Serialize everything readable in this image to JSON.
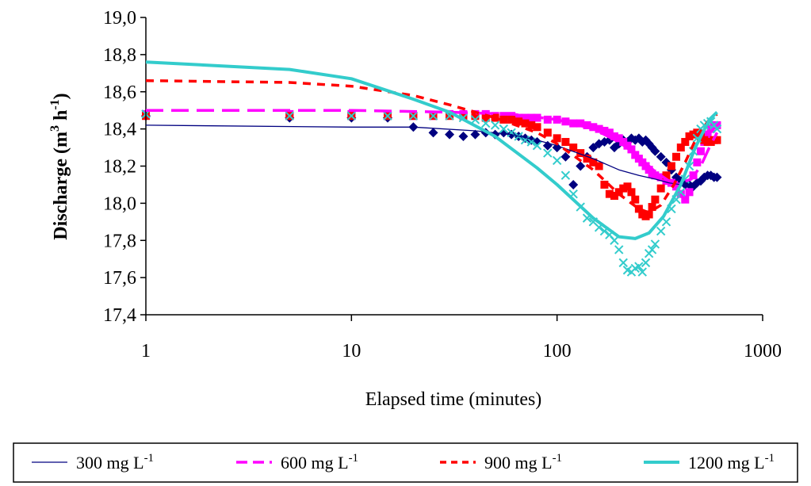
{
  "chart_data": {
    "type": "scatter",
    "xscale": "log",
    "xlim": [
      1,
      1000
    ],
    "ylim": [
      17.4,
      19.0
    ],
    "xticks": [
      1,
      10,
      100,
      1000
    ],
    "xtick_labels": [
      "1",
      "10",
      "100",
      "1000"
    ],
    "yticks": [
      17.4,
      17.6,
      17.8,
      18.0,
      18.2,
      18.4,
      18.6,
      18.8,
      19.0
    ],
    "ytick_labels": [
      "17,4",
      "17,6",
      "17,8",
      "18,0",
      "18,2",
      "18,4",
      "18,6",
      "18,8",
      "19,0"
    ],
    "xlabel": "Elapsed time (minutes)",
    "ylabel": {
      "main": "Discharge (m",
      "sup1": "3",
      "mid": " h",
      "sup2": "-1",
      "end": ")"
    },
    "grid": false,
    "legend_position": "bottom",
    "series": [
      {
        "name": "300 mg L",
        "name_sup": "-1",
        "color": "#000080",
        "line_style": "solid",
        "marker": "diamond",
        "points": [
          [
            1,
            18.47
          ],
          [
            5,
            18.46
          ],
          [
            10,
            18.46
          ],
          [
            15,
            18.46
          ],
          [
            20,
            18.41
          ],
          [
            25,
            18.38
          ],
          [
            30,
            18.37
          ],
          [
            35,
            18.36
          ],
          [
            40,
            18.37
          ],
          [
            45,
            18.38
          ],
          [
            50,
            18.37
          ],
          [
            55,
            18.38
          ],
          [
            60,
            18.37
          ],
          [
            65,
            18.36
          ],
          [
            70,
            18.35
          ],
          [
            75,
            18.34
          ],
          [
            80,
            18.33
          ],
          [
            90,
            18.31
          ],
          [
            100,
            18.3
          ],
          [
            110,
            18.25
          ],
          [
            120,
            18.1
          ],
          [
            130,
            18.2
          ],
          [
            140,
            18.25
          ],
          [
            150,
            18.3
          ],
          [
            160,
            18.32
          ],
          [
            170,
            18.33
          ],
          [
            180,
            18.34
          ],
          [
            190,
            18.3
          ],
          [
            200,
            18.32
          ],
          [
            210,
            18.34
          ],
          [
            220,
            18.33
          ],
          [
            230,
            18.35
          ],
          [
            240,
            18.34
          ],
          [
            250,
            18.35
          ],
          [
            260,
            18.33
          ],
          [
            270,
            18.34
          ],
          [
            280,
            18.32
          ],
          [
            290,
            18.3
          ],
          [
            300,
            18.28
          ],
          [
            320,
            18.25
          ],
          [
            340,
            18.22
          ],
          [
            360,
            18.18
          ],
          [
            380,
            18.14
          ],
          [
            400,
            18.12
          ],
          [
            420,
            18.1
          ],
          [
            440,
            18.1
          ],
          [
            460,
            18.09
          ],
          [
            480,
            18.11
          ],
          [
            500,
            18.12
          ],
          [
            520,
            18.14
          ],
          [
            540,
            18.15
          ],
          [
            560,
            18.15
          ],
          [
            580,
            18.14
          ],
          [
            600,
            18.14
          ]
        ],
        "fit": [
          [
            1,
            18.42
          ],
          [
            10,
            18.41
          ],
          [
            20,
            18.41
          ],
          [
            40,
            18.39
          ],
          [
            60,
            18.37
          ],
          [
            80,
            18.34
          ],
          [
            100,
            18.31
          ],
          [
            150,
            18.24
          ],
          [
            200,
            18.18
          ],
          [
            250,
            18.15
          ],
          [
            300,
            18.13
          ],
          [
            350,
            18.11
          ],
          [
            400,
            18.1
          ],
          [
            450,
            18.1
          ],
          [
            500,
            18.12
          ],
          [
            550,
            18.14
          ],
          [
            600,
            18.15
          ]
        ]
      },
      {
        "name": "600 mg L",
        "name_sup": "-1",
        "color": "#ff00ff",
        "line_style": "dashed",
        "marker": "square",
        "points": [
          [
            1,
            18.48
          ],
          [
            5,
            18.48
          ],
          [
            10,
            18.48
          ],
          [
            15,
            18.48
          ],
          [
            20,
            18.47
          ],
          [
            25,
            18.47
          ],
          [
            30,
            18.48
          ],
          [
            35,
            18.48
          ],
          [
            40,
            18.48
          ],
          [
            45,
            18.48
          ],
          [
            50,
            18.47
          ],
          [
            55,
            18.47
          ],
          [
            60,
            18.47
          ],
          [
            65,
            18.46
          ],
          [
            70,
            18.46
          ],
          [
            75,
            18.46
          ],
          [
            80,
            18.46
          ],
          [
            90,
            18.45
          ],
          [
            100,
            18.45
          ],
          [
            110,
            18.44
          ],
          [
            120,
            18.43
          ],
          [
            130,
            18.43
          ],
          [
            140,
            18.42
          ],
          [
            150,
            18.41
          ],
          [
            160,
            18.4
          ],
          [
            170,
            18.39
          ],
          [
            180,
            18.38
          ],
          [
            190,
            18.36
          ],
          [
            200,
            18.35
          ],
          [
            210,
            18.33
          ],
          [
            220,
            18.31
          ],
          [
            230,
            18.29
          ],
          [
            240,
            18.26
          ],
          [
            250,
            18.24
          ],
          [
            260,
            18.22
          ],
          [
            270,
            18.2
          ],
          [
            280,
            18.18
          ],
          [
            290,
            18.16
          ],
          [
            300,
            18.15
          ],
          [
            320,
            18.14
          ],
          [
            340,
            18.12
          ],
          [
            360,
            18.11
          ],
          [
            380,
            18.09
          ],
          [
            400,
            18.05
          ],
          [
            420,
            18.02
          ],
          [
            440,
            18.06
          ],
          [
            460,
            18.15
          ],
          [
            480,
            18.22
          ],
          [
            500,
            18.28
          ],
          [
            520,
            18.33
          ],
          [
            540,
            18.37
          ],
          [
            560,
            18.4
          ],
          [
            580,
            18.42
          ],
          [
            600,
            18.42
          ]
        ],
        "fit": [
          [
            1,
            18.5
          ],
          [
            10,
            18.5
          ],
          [
            30,
            18.49
          ],
          [
            60,
            18.48
          ],
          [
            100,
            18.45
          ],
          [
            150,
            18.4
          ],
          [
            200,
            18.33
          ],
          [
            250,
            18.25
          ],
          [
            300,
            18.17
          ],
          [
            350,
            18.12
          ],
          [
            400,
            18.11
          ],
          [
            450,
            18.13
          ],
          [
            500,
            18.2
          ],
          [
            550,
            18.3
          ],
          [
            600,
            18.38
          ]
        ]
      },
      {
        "name": "900 mg L",
        "name_sup": "-1",
        "color": "#ff0000",
        "line_style": "dashed-short",
        "marker": "square",
        "points": [
          [
            1,
            18.47
          ],
          [
            5,
            18.47
          ],
          [
            10,
            18.47
          ],
          [
            15,
            18.47
          ],
          [
            20,
            18.47
          ],
          [
            25,
            18.47
          ],
          [
            30,
            18.47
          ],
          [
            35,
            18.47
          ],
          [
            40,
            18.47
          ],
          [
            45,
            18.46
          ],
          [
            50,
            18.46
          ],
          [
            55,
            18.45
          ],
          [
            60,
            18.45
          ],
          [
            65,
            18.44
          ],
          [
            70,
            18.43
          ],
          [
            75,
            18.42
          ],
          [
            80,
            18.41
          ],
          [
            90,
            18.38
          ],
          [
            100,
            18.35
          ],
          [
            110,
            18.33
          ],
          [
            120,
            18.3
          ],
          [
            130,
            18.27
          ],
          [
            140,
            18.24
          ],
          [
            150,
            18.22
          ],
          [
            160,
            18.2
          ],
          [
            170,
            18.1
          ],
          [
            180,
            18.05
          ],
          [
            190,
            18.04
          ],
          [
            200,
            18.06
          ],
          [
            210,
            18.08
          ],
          [
            220,
            18.09
          ],
          [
            230,
            18.06
          ],
          [
            240,
            18.02
          ],
          [
            250,
            17.97
          ],
          [
            260,
            17.94
          ],
          [
            270,
            17.93
          ],
          [
            280,
            17.94
          ],
          [
            290,
            17.98
          ],
          [
            300,
            18.02
          ],
          [
            320,
            18.08
          ],
          [
            340,
            18.15
          ],
          [
            360,
            18.2
          ],
          [
            380,
            18.25
          ],
          [
            400,
            18.3
          ],
          [
            420,
            18.33
          ],
          [
            440,
            18.36
          ],
          [
            460,
            18.37
          ],
          [
            480,
            18.38
          ],
          [
            500,
            18.36
          ],
          [
            520,
            18.34
          ],
          [
            540,
            18.33
          ],
          [
            560,
            18.33
          ],
          [
            580,
            18.34
          ],
          [
            600,
            18.34
          ]
        ],
        "fit": [
          [
            1,
            18.66
          ],
          [
            5,
            18.65
          ],
          [
            10,
            18.63
          ],
          [
            20,
            18.58
          ],
          [
            30,
            18.53
          ],
          [
            50,
            18.46
          ],
          [
            80,
            18.38
          ],
          [
            100,
            18.32
          ],
          [
            150,
            18.18
          ],
          [
            200,
            18.05
          ],
          [
            250,
            17.97
          ],
          [
            280,
            17.95
          ],
          [
            320,
            17.99
          ],
          [
            370,
            18.1
          ],
          [
            420,
            18.22
          ],
          [
            480,
            18.36
          ],
          [
            550,
            18.45
          ],
          [
            600,
            18.48
          ]
        ]
      },
      {
        "name": "1200 mg L",
        "name_sup": "-1",
        "color": "#33cccc",
        "line_style": "solid-thick",
        "marker": "x",
        "points": [
          [
            1,
            18.48
          ],
          [
            5,
            18.47
          ],
          [
            10,
            18.47
          ],
          [
            15,
            18.47
          ],
          [
            20,
            18.47
          ],
          [
            25,
            18.47
          ],
          [
            30,
            18.47
          ],
          [
            35,
            18.46
          ],
          [
            40,
            18.45
          ],
          [
            45,
            18.43
          ],
          [
            50,
            18.42
          ],
          [
            55,
            18.4
          ],
          [
            60,
            18.38
          ],
          [
            65,
            18.36
          ],
          [
            70,
            18.34
          ],
          [
            75,
            18.33
          ],
          [
            80,
            18.31
          ],
          [
            90,
            18.27
          ],
          [
            100,
            18.23
          ],
          [
            110,
            18.15
          ],
          [
            120,
            18.05
          ],
          [
            130,
            17.98
          ],
          [
            140,
            17.92
          ],
          [
            150,
            17.9
          ],
          [
            160,
            17.87
          ],
          [
            170,
            17.85
          ],
          [
            180,
            17.83
          ],
          [
            190,
            17.8
          ],
          [
            200,
            17.75
          ],
          [
            210,
            17.68
          ],
          [
            220,
            17.64
          ],
          [
            230,
            17.63
          ],
          [
            240,
            17.65
          ],
          [
            250,
            17.66
          ],
          [
            260,
            17.63
          ],
          [
            270,
            17.68
          ],
          [
            280,
            17.73
          ],
          [
            290,
            17.75
          ],
          [
            300,
            17.78
          ],
          [
            320,
            17.85
          ],
          [
            340,
            17.9
          ],
          [
            360,
            17.97
          ],
          [
            380,
            18.02
          ],
          [
            400,
            18.06
          ],
          [
            420,
            18.13
          ],
          [
            440,
            18.2
          ],
          [
            460,
            18.28
          ],
          [
            480,
            18.35
          ],
          [
            500,
            18.4
          ],
          [
            520,
            18.42
          ],
          [
            540,
            18.43
          ],
          [
            560,
            18.44
          ],
          [
            580,
            18.42
          ],
          [
            600,
            18.4
          ]
        ],
        "fit": [
          [
            1,
            18.76
          ],
          [
            5,
            18.72
          ],
          [
            10,
            18.67
          ],
          [
            20,
            18.56
          ],
          [
            30,
            18.49
          ],
          [
            50,
            18.36
          ],
          [
            80,
            18.19
          ],
          [
            100,
            18.1
          ],
          [
            150,
            17.92
          ],
          [
            200,
            17.82
          ],
          [
            240,
            17.81
          ],
          [
            280,
            17.84
          ],
          [
            330,
            17.93
          ],
          [
            400,
            18.1
          ],
          [
            470,
            18.3
          ],
          [
            550,
            18.45
          ],
          [
            600,
            18.49
          ]
        ]
      }
    ]
  }
}
